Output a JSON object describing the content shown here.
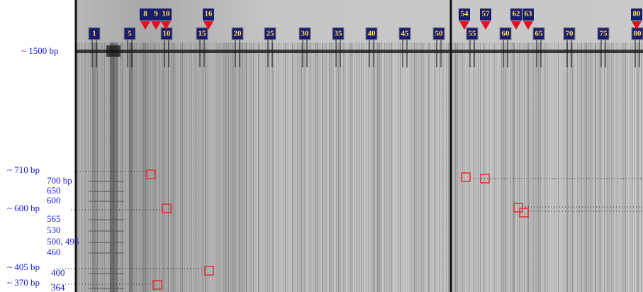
{
  "size_labels": [
    "~ 1500 bp",
    "~ 710 bp",
    "~ 600 bp",
    "~ 405 bp",
    "~ 370 bp"
  ],
  "ladder_labels": [
    "700 bp",
    "650",
    "600",
    "565",
    "530",
    "500, 495",
    "460",
    "400",
    "364"
  ],
  "lane_labels": [
    "1",
    "5",
    "10",
    "15",
    "20",
    "25",
    "30",
    "35",
    "40",
    "45",
    "50",
    "55",
    "60",
    "65",
    "70",
    "75",
    "80"
  ],
  "markers": [
    "8",
    "9",
    "10",
    "16",
    "54",
    "57",
    "62",
    "63",
    "80"
  ]
}
